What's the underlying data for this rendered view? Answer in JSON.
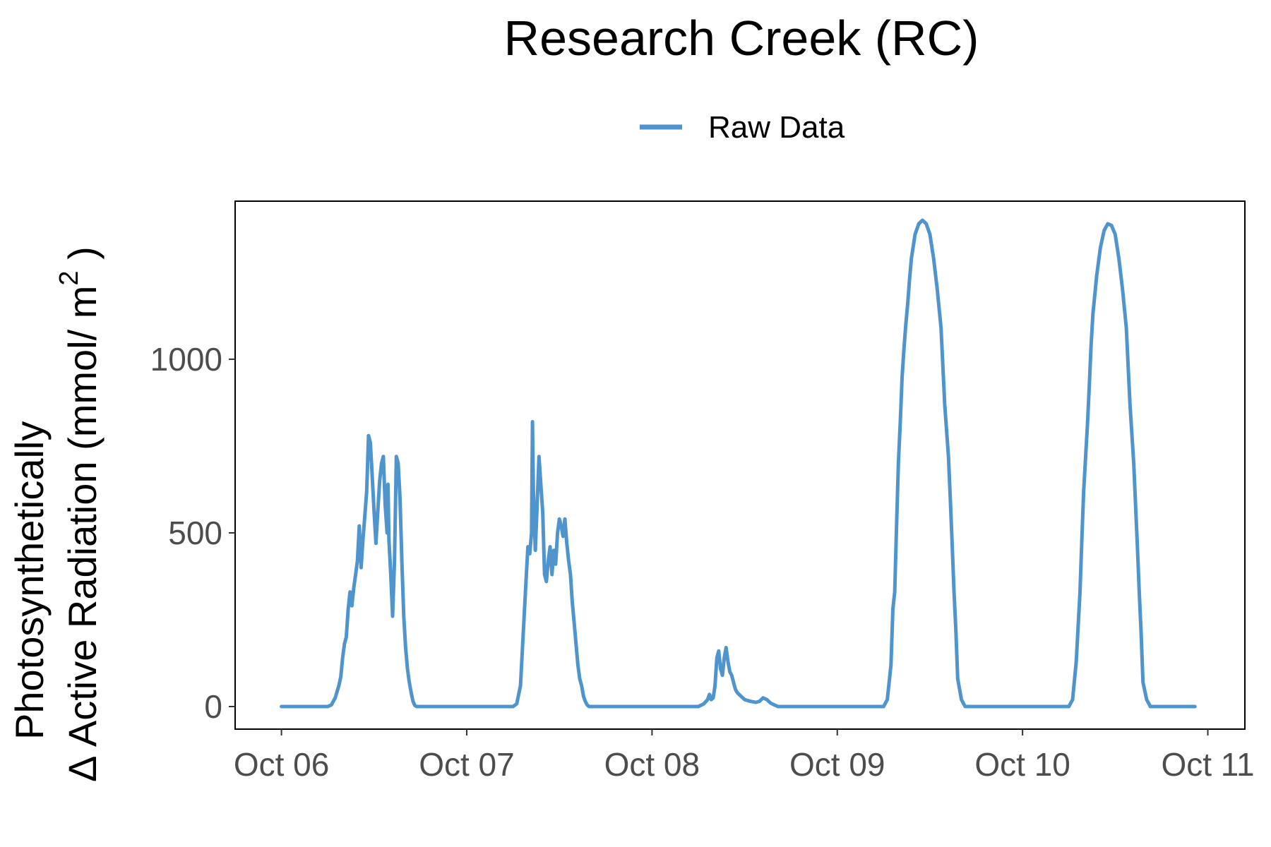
{
  "chart_data": {
    "type": "line",
    "title": "Research Creek (RC)",
    "ylabel_line1": "Photosynthetically",
    "ylabel_line2_prefix": "Δ Active Radiation (mmol/ m",
    "ylabel_superscript": "2",
    "ylabel_line2_suffix": " )",
    "xlabel": "",
    "x_unit": "days since Oct 06 00:00",
    "xlim": [
      -0.25,
      5.2
    ],
    "ylim": [
      -65,
      1455
    ],
    "x_ticks": [
      {
        "value": 0,
        "label": "Oct 06"
      },
      {
        "value": 1,
        "label": "Oct 07"
      },
      {
        "value": 2,
        "label": "Oct 08"
      },
      {
        "value": 3,
        "label": "Oct 09"
      },
      {
        "value": 4,
        "label": "Oct 10"
      },
      {
        "value": 5,
        "label": "Oct 11"
      }
    ],
    "y_ticks": [
      {
        "value": 0,
        "label": "0"
      },
      {
        "value": 500,
        "label": "500"
      },
      {
        "value": 1000,
        "label": "1000"
      }
    ],
    "grid": false,
    "legend_position": "top",
    "series": [
      {
        "name": "Raw Data",
        "color": "#4f94cd",
        "points": [
          [
            0.0,
            0
          ],
          [
            0.25,
            0
          ],
          [
            0.27,
            5
          ],
          [
            0.29,
            25
          ],
          [
            0.31,
            60
          ],
          [
            0.32,
            85
          ],
          [
            0.33,
            140
          ],
          [
            0.34,
            180
          ],
          [
            0.35,
            200
          ],
          [
            0.36,
            280
          ],
          [
            0.37,
            330
          ],
          [
            0.38,
            290
          ],
          [
            0.39,
            340
          ],
          [
            0.4,
            380
          ],
          [
            0.41,
            420
          ],
          [
            0.42,
            520
          ],
          [
            0.43,
            400
          ],
          [
            0.44,
            480
          ],
          [
            0.45,
            550
          ],
          [
            0.46,
            620
          ],
          [
            0.47,
            780
          ],
          [
            0.48,
            760
          ],
          [
            0.49,
            660
          ],
          [
            0.5,
            560
          ],
          [
            0.51,
            470
          ],
          [
            0.52,
            560
          ],
          [
            0.53,
            650
          ],
          [
            0.54,
            700
          ],
          [
            0.55,
            720
          ],
          [
            0.56,
            580
          ],
          [
            0.57,
            500
          ],
          [
            0.575,
            640
          ],
          [
            0.58,
            480
          ],
          [
            0.59,
            380
          ],
          [
            0.6,
            260
          ],
          [
            0.61,
            420
          ],
          [
            0.62,
            720
          ],
          [
            0.63,
            700
          ],
          [
            0.64,
            600
          ],
          [
            0.65,
            420
          ],
          [
            0.66,
            260
          ],
          [
            0.67,
            170
          ],
          [
            0.68,
            110
          ],
          [
            0.69,
            70
          ],
          [
            0.7,
            40
          ],
          [
            0.71,
            15
          ],
          [
            0.72,
            3
          ],
          [
            0.73,
            0
          ],
          [
            1.25,
            0
          ],
          [
            1.27,
            8
          ],
          [
            1.29,
            60
          ],
          [
            1.3,
            160
          ],
          [
            1.31,
            260
          ],
          [
            1.32,
            360
          ],
          [
            1.33,
            460
          ],
          [
            1.34,
            440
          ],
          [
            1.35,
            500
          ],
          [
            1.355,
            820
          ],
          [
            1.36,
            620
          ],
          [
            1.37,
            450
          ],
          [
            1.38,
            580
          ],
          [
            1.39,
            720
          ],
          [
            1.4,
            640
          ],
          [
            1.41,
            560
          ],
          [
            1.42,
            380
          ],
          [
            1.43,
            360
          ],
          [
            1.44,
            420
          ],
          [
            1.45,
            460
          ],
          [
            1.46,
            380
          ],
          [
            1.47,
            450
          ],
          [
            1.48,
            410
          ],
          [
            1.49,
            500
          ],
          [
            1.5,
            540
          ],
          [
            1.51,
            520
          ],
          [
            1.52,
            490
          ],
          [
            1.53,
            540
          ],
          [
            1.54,
            470
          ],
          [
            1.55,
            420
          ],
          [
            1.56,
            380
          ],
          [
            1.57,
            300
          ],
          [
            1.58,
            240
          ],
          [
            1.59,
            180
          ],
          [
            1.6,
            120
          ],
          [
            1.61,
            80
          ],
          [
            1.62,
            60
          ],
          [
            1.63,
            30
          ],
          [
            1.64,
            15
          ],
          [
            1.65,
            5
          ],
          [
            1.66,
            0
          ],
          [
            2.25,
            0
          ],
          [
            2.28,
            8
          ],
          [
            2.3,
            20
          ],
          [
            2.31,
            35
          ],
          [
            2.32,
            20
          ],
          [
            2.33,
            25
          ],
          [
            2.34,
            60
          ],
          [
            2.35,
            140
          ],
          [
            2.36,
            160
          ],
          [
            2.37,
            110
          ],
          [
            2.38,
            90
          ],
          [
            2.39,
            140
          ],
          [
            2.4,
            170
          ],
          [
            2.41,
            130
          ],
          [
            2.42,
            100
          ],
          [
            2.43,
            90
          ],
          [
            2.44,
            70
          ],
          [
            2.45,
            50
          ],
          [
            2.46,
            40
          ],
          [
            2.48,
            30
          ],
          [
            2.5,
            20
          ],
          [
            2.53,
            15
          ],
          [
            2.56,
            12
          ],
          [
            2.58,
            15
          ],
          [
            2.6,
            25
          ],
          [
            2.62,
            20
          ],
          [
            2.64,
            10
          ],
          [
            2.66,
            5
          ],
          [
            2.68,
            0
          ],
          [
            3.25,
            0
          ],
          [
            3.27,
            20
          ],
          [
            3.29,
            120
          ],
          [
            3.3,
            280
          ],
          [
            3.31,
            330
          ],
          [
            3.32,
            520
          ],
          [
            3.33,
            700
          ],
          [
            3.34,
            820
          ],
          [
            3.35,
            950
          ],
          [
            3.36,
            1030
          ],
          [
            3.37,
            1100
          ],
          [
            3.38,
            1160
          ],
          [
            3.39,
            1230
          ],
          [
            3.4,
            1290
          ],
          [
            3.42,
            1360
          ],
          [
            3.44,
            1390
          ],
          [
            3.46,
            1400
          ],
          [
            3.48,
            1390
          ],
          [
            3.5,
            1360
          ],
          [
            3.52,
            1290
          ],
          [
            3.54,
            1200
          ],
          [
            3.56,
            1090
          ],
          [
            3.57,
            980
          ],
          [
            3.58,
            870
          ],
          [
            3.6,
            720
          ],
          [
            3.61,
            600
          ],
          [
            3.62,
            470
          ],
          [
            3.63,
            330
          ],
          [
            3.64,
            220
          ],
          [
            3.65,
            80
          ],
          [
            3.67,
            20
          ],
          [
            3.69,
            0
          ],
          [
            4.25,
            0
          ],
          [
            4.27,
            20
          ],
          [
            4.29,
            130
          ],
          [
            4.31,
            330
          ],
          [
            4.32,
            480
          ],
          [
            4.33,
            620
          ],
          [
            4.35,
            810
          ],
          [
            4.36,
            920
          ],
          [
            4.37,
            1040
          ],
          [
            4.38,
            1130
          ],
          [
            4.4,
            1240
          ],
          [
            4.42,
            1320
          ],
          [
            4.44,
            1370
          ],
          [
            4.46,
            1390
          ],
          [
            4.48,
            1385
          ],
          [
            4.5,
            1360
          ],
          [
            4.52,
            1290
          ],
          [
            4.54,
            1200
          ],
          [
            4.56,
            1090
          ],
          [
            4.57,
            980
          ],
          [
            4.58,
            870
          ],
          [
            4.6,
            700
          ],
          [
            4.61,
            580
          ],
          [
            4.62,
            460
          ],
          [
            4.63,
            330
          ],
          [
            4.64,
            210
          ],
          [
            4.65,
            70
          ],
          [
            4.67,
            20
          ],
          [
            4.69,
            0
          ],
          [
            4.93,
            0
          ]
        ]
      }
    ]
  }
}
